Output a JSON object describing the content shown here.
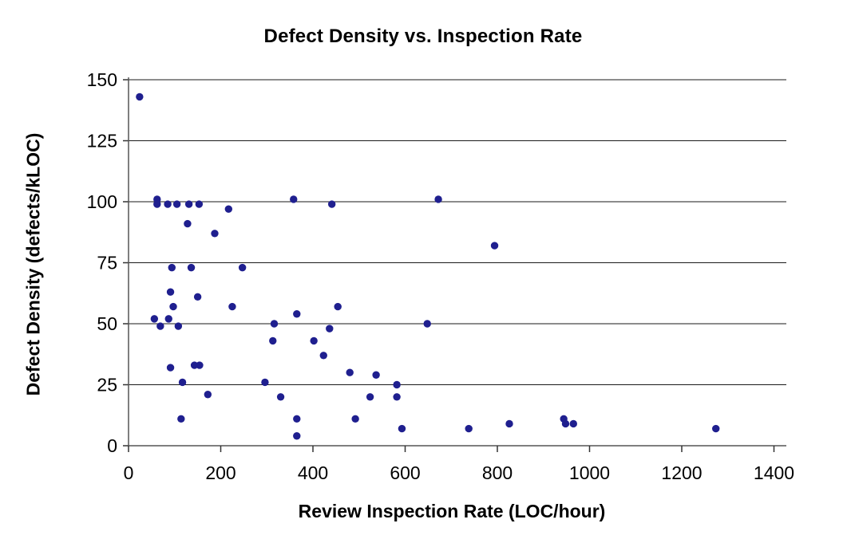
{
  "chart_data": {
    "type": "scatter",
    "title": "Defect Density vs. Inspection Rate",
    "xlabel": "Review Inspection Rate (LOC/hour)",
    "ylabel": "Defect Density (defects/kLOC)",
    "xlim": [
      0,
      1400
    ],
    "ylim": [
      0,
      150
    ],
    "xticks": [
      0,
      200,
      400,
      600,
      800,
      1000,
      1200,
      1400
    ],
    "yticks": [
      0,
      25,
      50,
      75,
      100,
      125,
      150
    ],
    "grid": "horizontal-only",
    "legend": "none",
    "marker_color": "#1f1f8f",
    "background_color": "#ffffff",
    "points": [
      [
        24,
        143
      ],
      [
        56,
        52
      ],
      [
        62,
        101
      ],
      [
        62,
        99
      ],
      [
        69,
        49
      ],
      [
        85,
        99
      ],
      [
        87,
        52
      ],
      [
        91,
        63
      ],
      [
        91,
        32
      ],
      [
        94,
        73
      ],
      [
        97,
        57
      ],
      [
        105,
        99
      ],
      [
        108,
        49
      ],
      [
        114,
        11
      ],
      [
        117,
        26
      ],
      [
        128,
        91
      ],
      [
        131,
        99
      ],
      [
        136,
        73
      ],
      [
        143,
        33
      ],
      [
        150,
        61
      ],
      [
        153,
        99
      ],
      [
        154,
        33
      ],
      [
        172,
        21
      ],
      [
        187,
        87
      ],
      [
        217,
        97
      ],
      [
        225,
        57
      ],
      [
        247,
        73
      ],
      [
        296,
        26
      ],
      [
        313,
        43
      ],
      [
        316,
        50
      ],
      [
        330,
        20
      ],
      [
        358,
        101
      ],
      [
        365,
        54
      ],
      [
        365,
        11
      ],
      [
        365,
        4
      ],
      [
        402,
        43
      ],
      [
        423,
        37
      ],
      [
        436,
        48
      ],
      [
        441,
        99
      ],
      [
        454,
        57
      ],
      [
        480,
        30
      ],
      [
        492,
        11
      ],
      [
        524,
        20
      ],
      [
        537,
        29
      ],
      [
        582,
        25
      ],
      [
        582,
        20
      ],
      [
        593,
        7
      ],
      [
        648,
        50
      ],
      [
        672,
        101
      ],
      [
        738,
        7
      ],
      [
        794,
        82
      ],
      [
        826,
        9
      ],
      [
        944,
        11
      ],
      [
        948,
        9
      ],
      [
        965,
        9
      ],
      [
        1274,
        7
      ]
    ]
  }
}
